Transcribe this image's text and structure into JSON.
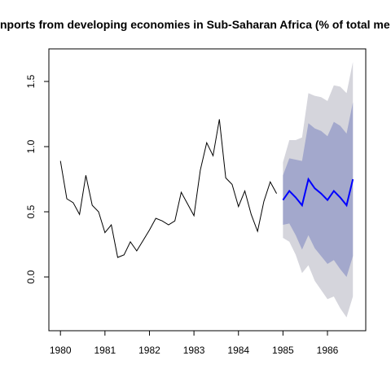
{
  "chart_data": {
    "type": "line",
    "title": "nports from developing economies in Sub-Saharan Africa (% of total me",
    "xlim": [
      1979.74,
      1986.86
    ],
    "ylim": [
      -0.4125,
      1.75
    ],
    "xticks": [
      1980,
      1981,
      1982,
      1983,
      1984,
      1985,
      1986
    ],
    "yticks": [
      {
        "value": 0,
        "label": "0.0"
      },
      {
        "value": 0.5,
        "label": "0.5"
      },
      {
        "value": 1,
        "label": "1.0"
      },
      {
        "value": 1.5,
        "label": "1.5"
      }
    ],
    "series": [
      {
        "color": "#000000",
        "x": [
          1980.0,
          1980.143,
          1980.286,
          1980.429,
          1980.571,
          1980.714,
          1980.857,
          1981.0,
          1981.143,
          1981.286,
          1981.429,
          1981.571,
          1981.714,
          1981.857,
          1982.0,
          1982.143,
          1982.286,
          1982.429,
          1982.571,
          1982.714,
          1982.857,
          1983.0,
          1983.143,
          1983.286,
          1983.429,
          1983.571,
          1983.714,
          1983.857,
          1984.0,
          1984.143,
          1984.286,
          1984.429,
          1984.571,
          1984.714,
          1984.857
        ],
        "values": [
          0.89,
          0.6,
          0.57,
          0.48,
          0.78,
          0.55,
          0.5,
          0.34,
          0.4,
          0.15,
          0.17,
          0.27,
          0.2,
          0.28,
          0.36,
          0.45,
          0.43,
          0.4,
          0.43,
          0.65,
          0.56,
          0.47,
          0.82,
          1.03,
          0.93,
          1.21,
          0.76,
          0.71,
          0.54,
          0.66,
          0.48,
          0.35,
          0.58,
          0.73,
          0.64
        ]
      },
      {
        "color": "#0000ff",
        "x": [
          1985.0,
          1985.143,
          1985.286,
          1985.429,
          1985.571,
          1985.714,
          1985.857,
          1986.0,
          1986.143,
          1986.286,
          1986.429,
          1986.571
        ],
        "values": [
          0.59,
          0.66,
          0.61,
          0.55,
          0.75,
          0.68,
          0.64,
          0.59,
          0.66,
          0.61,
          0.55,
          0.75
        ],
        "intervals": [
          {
            "color": "#d5d5dc",
            "lower": [
              0.3,
              0.27,
              0.17,
              0.03,
              0.09,
              -0.03,
              -0.1,
              -0.17,
              -0.15,
              -0.24,
              -0.31,
              -0.15
            ],
            "upper": [
              0.88,
              1.05,
              1.05,
              1.07,
              1.41,
              1.39,
              1.38,
              1.35,
              1.47,
              1.46,
              1.41,
              1.65
            ]
          },
          {
            "color": "#a3a8cc",
            "lower": [
              0.4,
              0.41,
              0.32,
              0.21,
              0.32,
              0.22,
              0.16,
              0.1,
              0.13,
              0.06,
              0.0,
              0.16
            ],
            "upper": [
              0.78,
              0.91,
              0.9,
              0.89,
              1.18,
              1.14,
              1.12,
              1.08,
              1.19,
              1.16,
              1.1,
              1.34
            ]
          }
        ]
      }
    ]
  }
}
